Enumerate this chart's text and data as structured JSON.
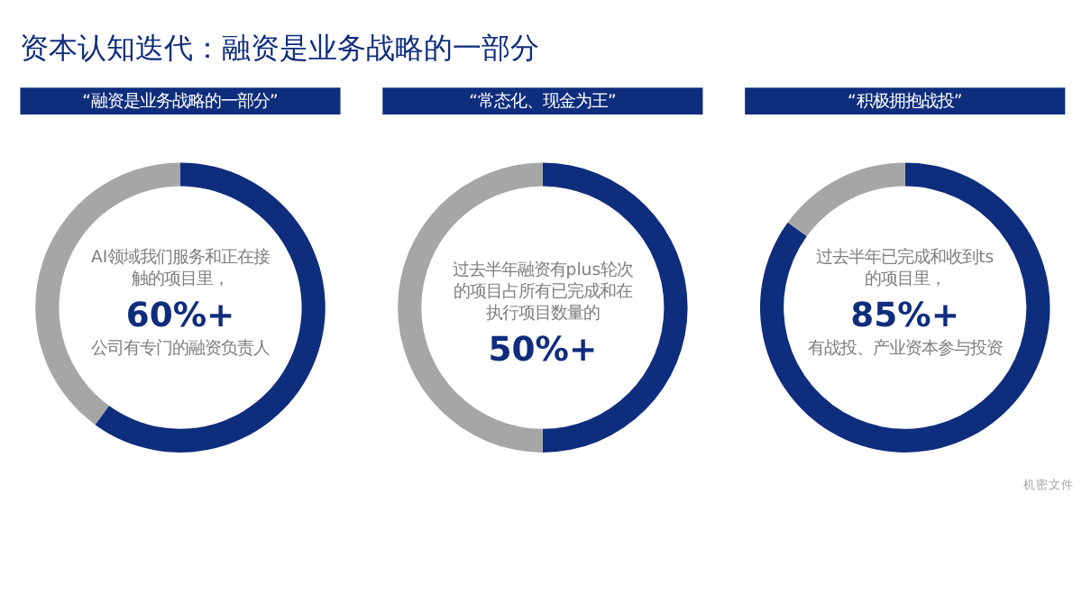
{
  "chart_data": [
    {
      "type": "donut",
      "title": "“融资是业务战略的一部分”",
      "categories": [
        null,
        null
      ],
      "values": [
        60,
        40
      ],
      "colors": [
        "#0f2d7d",
        "#a6a6a6"
      ],
      "value_labels": [
        "60%+",
        null
      ],
      "legend": false,
      "annotations": [
        "AI领域我们服务和正在接触的项目里，",
        "公司有专门的融资负责人",
        "资本认知迭代：融资是业务战略的一部分"
      ]
    },
    {
      "type": "donut",
      "title": "“常态化、现金为王”",
      "categories": [
        null,
        null
      ],
      "values": [
        50,
        50
      ],
      "colors": [
        "#0f2d7d",
        "#a6a6a6"
      ],
      "value_labels": [
        "50%+",
        null
      ],
      "legend": false,
      "annotations": [
        "过去半年融资有plus轮次的项目占所有已完成和在执行项目数量的"
      ]
    },
    {
      "type": "donut",
      "title": "“积极拥抱战投”",
      "categories": [
        null,
        null
      ],
      "values": [
        85,
        15
      ],
      "colors": [
        "#0f2d7d",
        "#a6a6a6"
      ],
      "value_labels": [
        "85%+",
        null
      ],
      "legend": false,
      "annotations": [
        "过去半年已完成和收到ts的项目里，",
        "有战投、产业资本参与投资",
        "机密文件"
      ]
    }
  ]
}
